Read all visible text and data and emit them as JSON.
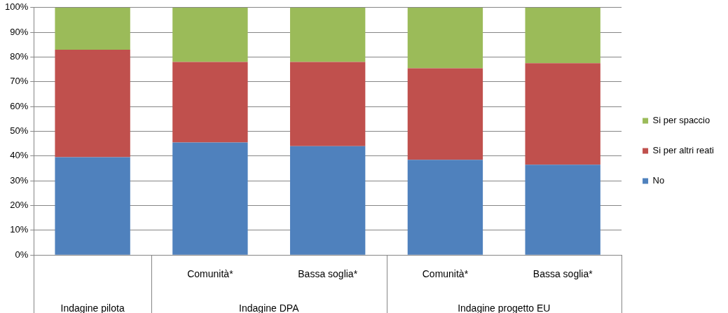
{
  "chart_data": {
    "type": "bar",
    "stacked": true,
    "categories": [
      null,
      "Comunità*",
      "Bassa soglia*",
      "Comunità*",
      "Bassa soglia*"
    ],
    "series": [
      {
        "name": "No",
        "color": "#4f81bd",
        "values": [
          39.5,
          45.5,
          44,
          38.5,
          36.5
        ]
      },
      {
        "name": "Si per altri reati",
        "color": "#c0504d",
        "values": [
          43.5,
          32.5,
          34,
          37,
          41
        ]
      },
      {
        "name": "Si per spaccio",
        "color": "#9bbb59",
        "values": [
          17,
          22,
          22,
          24.5,
          22.5
        ]
      }
    ],
    "ylim": [
      0,
      100
    ],
    "yticks": [
      {
        "value": 0,
        "label": "0%"
      },
      {
        "value": 10,
        "label": "10%"
      },
      {
        "value": 20,
        "label": "20%"
      },
      {
        "value": 30,
        "label": "30%"
      },
      {
        "value": 40,
        "label": "40%"
      },
      {
        "value": 50,
        "label": "50%"
      },
      {
        "value": 60,
        "label": "60%"
      },
      {
        "value": 70,
        "label": "70%"
      },
      {
        "value": 80,
        "label": "80%"
      },
      {
        "value": 90,
        "label": "90%"
      },
      {
        "value": 100,
        "label": "100%"
      }
    ],
    "grid": "y",
    "legend": "right",
    "annotations": [
      "Indagine pilota",
      "Indagine DPA",
      "Indagine progetto EU"
    ]
  }
}
